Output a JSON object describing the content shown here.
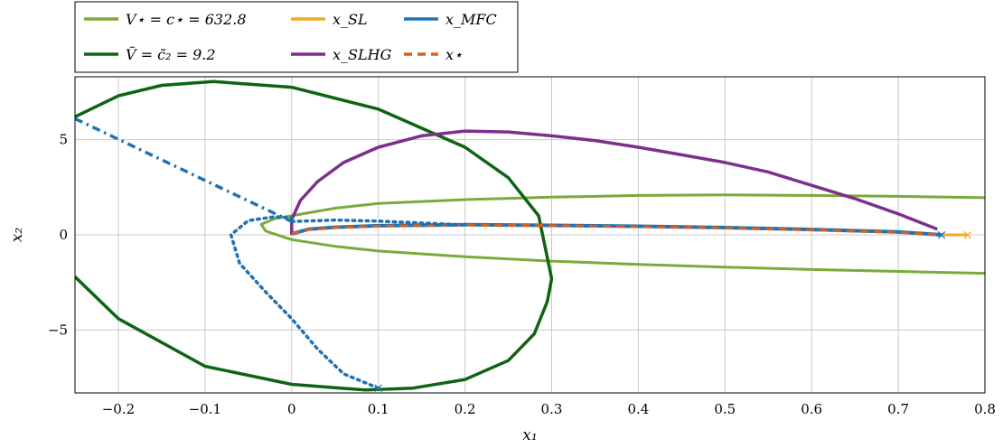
{
  "chart_data": {
    "type": "line",
    "title": "",
    "xlabel": "x₁",
    "ylabel": "x₂",
    "xlim": [
      -0.25,
      0.8
    ],
    "ylim": [
      -8.3,
      8.3
    ],
    "grid": true,
    "legend_position": "top-left, above plot",
    "x_ticks": [
      -0.2,
      -0.1,
      0,
      0.1,
      0.2,
      0.3,
      0.4,
      0.5,
      0.6,
      0.7,
      0.8
    ],
    "x_tick_labels": [
      "−0.2",
      "−0.1",
      "0",
      "0.1",
      "0.2",
      "0.3",
      "0.4",
      "0.5",
      "0.6",
      "0.7",
      "0.8"
    ],
    "y_ticks": [
      -5,
      0,
      5
    ],
    "y_tick_labels": [
      "−5",
      "0",
      "5"
    ],
    "legend": [
      {
        "label": "V⋆ = c⋆ = 632.8",
        "color": "#7aab3a",
        "style": "solid"
      },
      {
        "label": "x_SL",
        "color": "#f0ac1c",
        "style": "solid"
      },
      {
        "label": "x_MFC",
        "color": "#1f72b4",
        "style": "solid"
      },
      {
        "label": "Ṽ = c̃₂ = 9.2",
        "color": "#0e6412",
        "style": "solid"
      },
      {
        "label": "x_SLHG",
        "color": "#7d2f8c",
        "style": "solid"
      },
      {
        "label": "x⋆",
        "color": "#d95f1e",
        "style": "dashed"
      }
    ],
    "series": [
      {
        "name": "V⋆ = c⋆ = 632.8",
        "color": "#7aab3a",
        "style": "solid",
        "width": 3,
        "points": [
          [
            0.8,
            1.95
          ],
          [
            0.7,
            2.02
          ],
          [
            0.6,
            2.07
          ],
          [
            0.5,
            2.1
          ],
          [
            0.4,
            2.07
          ],
          [
            0.3,
            1.98
          ],
          [
            0.2,
            1.85
          ],
          [
            0.1,
            1.65
          ],
          [
            0.05,
            1.4
          ],
          [
            0.0,
            1.0
          ],
          [
            -0.02,
            0.85
          ],
          [
            -0.035,
            0.55
          ],
          [
            -0.03,
            0.2
          ],
          [
            0.0,
            -0.25
          ],
          [
            0.05,
            -0.6
          ],
          [
            0.1,
            -0.85
          ],
          [
            0.2,
            -1.15
          ],
          [
            0.3,
            -1.38
          ],
          [
            0.4,
            -1.55
          ],
          [
            0.5,
            -1.7
          ],
          [
            0.6,
            -1.82
          ],
          [
            0.7,
            -1.92
          ],
          [
            0.8,
            -2.02
          ]
        ]
      },
      {
        "name": "Ṽ = c̃₂ = 9.2",
        "color": "#0e6412",
        "style": "solid",
        "width": 3.5,
        "points": [
          [
            -0.25,
            6.2
          ],
          [
            -0.2,
            7.3
          ],
          [
            -0.15,
            7.85
          ],
          [
            -0.09,
            8.05
          ],
          [
            0.0,
            7.75
          ],
          [
            0.1,
            6.6
          ],
          [
            0.2,
            4.6
          ],
          [
            0.25,
            3.0
          ],
          [
            0.285,
            1.0
          ],
          [
            0.3,
            -2.3
          ],
          [
            0.295,
            -3.5
          ],
          [
            0.28,
            -5.2
          ],
          [
            0.25,
            -6.6
          ],
          [
            0.2,
            -7.6
          ],
          [
            0.14,
            -8.05
          ],
          [
            0.085,
            -8.15
          ],
          [
            0.0,
            -7.85
          ],
          [
            -0.1,
            -6.9
          ],
          [
            -0.2,
            -4.4
          ],
          [
            -0.25,
            -2.2
          ]
        ]
      },
      {
        "name": "x_SLHG",
        "color": "#7d2f8c",
        "style": "solid",
        "width": 3.5,
        "points": [
          [
            0.0,
            0.0
          ],
          [
            0.0,
            0.8
          ],
          [
            0.01,
            1.8
          ],
          [
            0.03,
            2.8
          ],
          [
            0.06,
            3.8
          ],
          [
            0.1,
            4.6
          ],
          [
            0.15,
            5.2
          ],
          [
            0.2,
            5.45
          ],
          [
            0.25,
            5.4
          ],
          [
            0.3,
            5.2
          ],
          [
            0.35,
            4.95
          ],
          [
            0.4,
            4.6
          ],
          [
            0.45,
            4.2
          ],
          [
            0.5,
            3.8
          ],
          [
            0.55,
            3.3
          ],
          [
            0.6,
            2.6
          ],
          [
            0.65,
            1.9
          ],
          [
            0.7,
            1.1
          ],
          [
            0.745,
            0.3
          ]
        ]
      },
      {
        "name": "x_SL",
        "color": "#f0ac1c",
        "style": "solid",
        "width": 3,
        "points": [
          [
            0.75,
            0.0
          ],
          [
            0.765,
            0.0
          ],
          [
            0.78,
            0.0
          ]
        ]
      },
      {
        "name": "x_MFC",
        "color": "#1f72b4",
        "style": "solid",
        "width": 4,
        "points": [
          [
            0.0,
            0.05
          ],
          [
            0.02,
            0.3
          ],
          [
            0.05,
            0.4
          ],
          [
            0.1,
            0.48
          ],
          [
            0.2,
            0.53
          ],
          [
            0.3,
            0.5
          ],
          [
            0.4,
            0.45
          ],
          [
            0.5,
            0.38
          ],
          [
            0.6,
            0.28
          ],
          [
            0.7,
            0.15
          ],
          [
            0.75,
            0.0
          ]
        ]
      },
      {
        "name": "x⋆",
        "color": "#d95f1e",
        "style": "dashed",
        "width": 3,
        "points": [
          [
            0.0,
            0.05
          ],
          [
            0.02,
            0.28
          ],
          [
            0.05,
            0.38
          ],
          [
            0.1,
            0.46
          ],
          [
            0.2,
            0.52
          ],
          [
            0.3,
            0.49
          ],
          [
            0.4,
            0.43
          ],
          [
            0.5,
            0.36
          ],
          [
            0.6,
            0.26
          ],
          [
            0.7,
            0.13
          ],
          [
            0.75,
            0.0
          ]
        ]
      },
      {
        "name": "",
        "color": "#1f72b4",
        "style": "dashdot",
        "width": 3.5,
        "points": [
          [
            -0.25,
            6.1
          ],
          [
            0.0,
            0.7
          ]
        ]
      },
      {
        "name": "",
        "color": "#1f72b4",
        "style": "dotted",
        "width": 3.5,
        "points": [
          [
            0.0,
            0.7
          ],
          [
            0.05,
            0.78
          ],
          [
            0.1,
            0.72
          ],
          [
            0.15,
            0.62
          ],
          [
            0.2,
            0.52
          ]
        ]
      },
      {
        "name": "",
        "color": "#1f72b4",
        "style": "dotted",
        "width": 3.5,
        "points": [
          [
            0.1,
            -8.05
          ],
          [
            0.06,
            -7.3
          ],
          [
            0.03,
            -6.0
          ],
          [
            0.0,
            -4.4
          ],
          [
            -0.03,
            -3.0
          ],
          [
            -0.06,
            -1.5
          ],
          [
            -0.07,
            0.0
          ],
          [
            -0.05,
            0.75
          ],
          [
            -0.02,
            0.95
          ],
          [
            0.0,
            0.9
          ]
        ]
      }
    ],
    "markers": [
      {
        "x": 0.75,
        "y": 0.0,
        "color": "#1f72b4",
        "symbol": "×"
      },
      {
        "x": 0.78,
        "y": 0.0,
        "color": "#f0ac1c",
        "symbol": "×"
      },
      {
        "x": 0.1,
        "y": -8.05,
        "color": "#1f72b4",
        "symbol": "×"
      }
    ]
  }
}
